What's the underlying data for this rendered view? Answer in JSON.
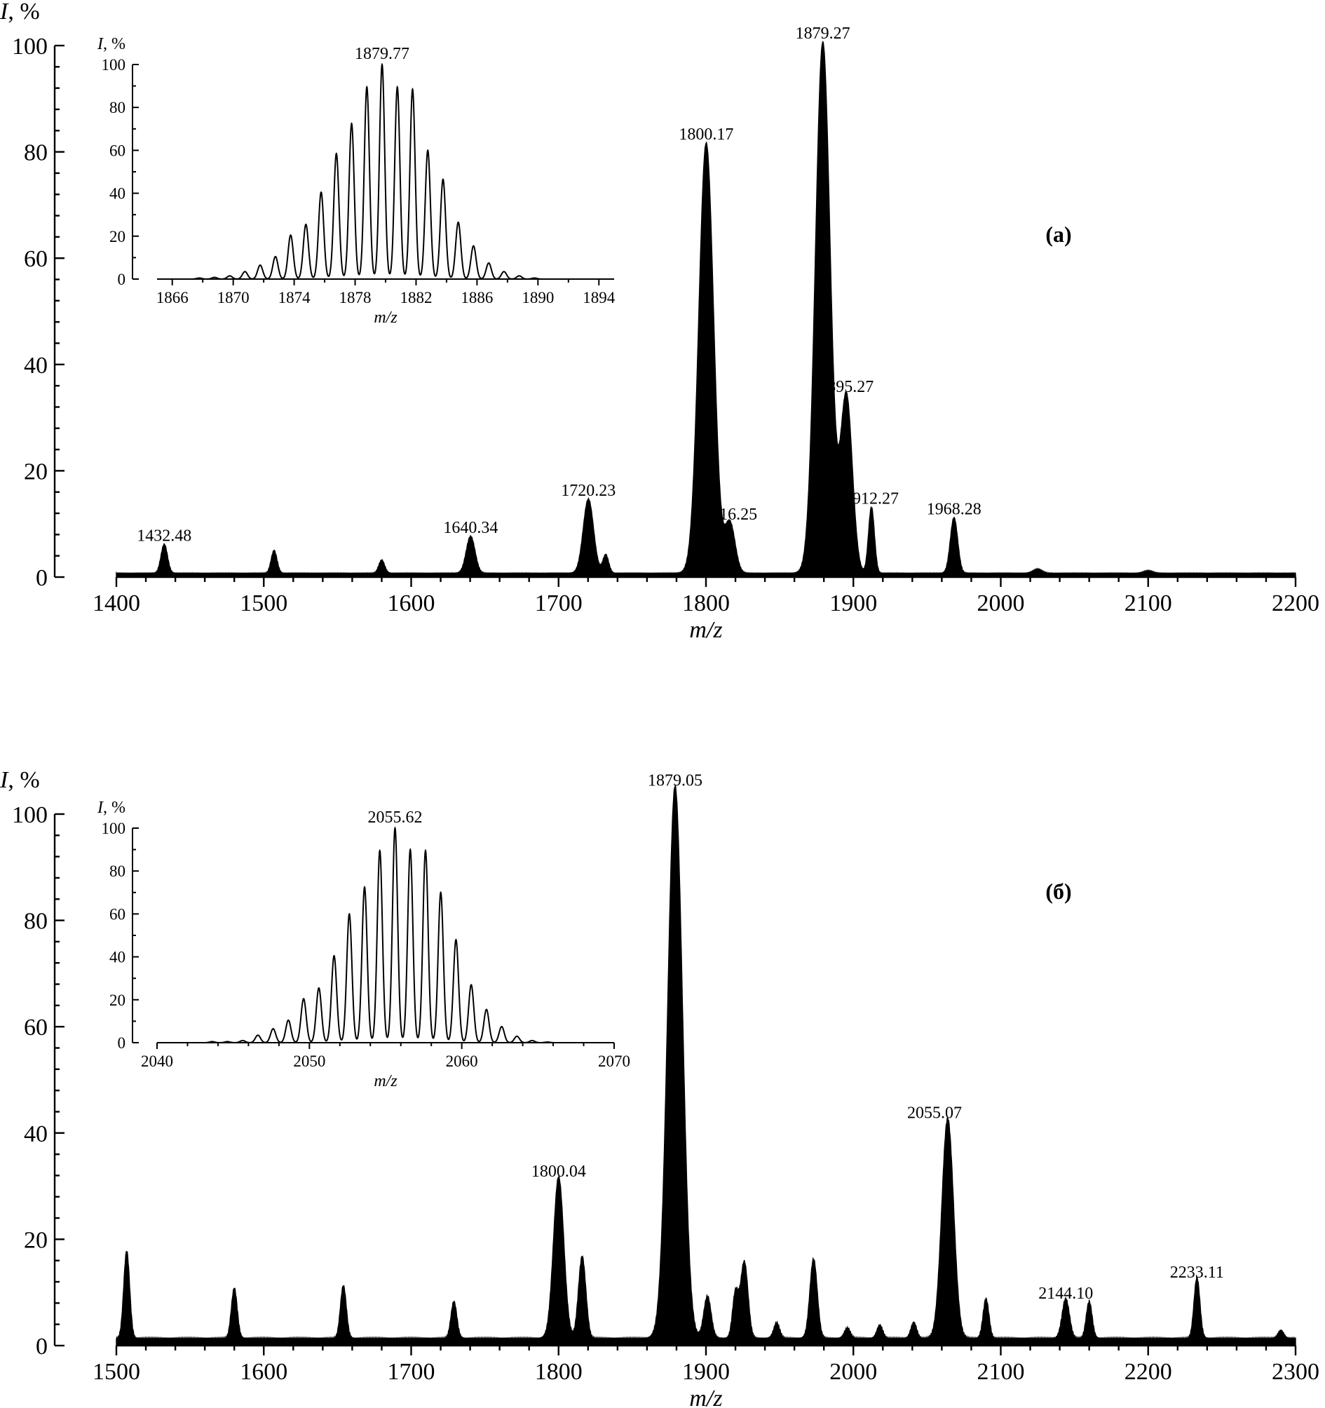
{
  "chart_data": [
    {
      "id": "a_main",
      "type": "line",
      "panel_label": "(a)",
      "ylabel_italic": "I",
      "ylabel_rest": ", %",
      "xlabel": "m/z",
      "xlim": [
        1400,
        2200
      ],
      "ylim": [
        0,
        100
      ],
      "xticks": [
        1400,
        1500,
        1600,
        1700,
        1800,
        1900,
        2000,
        2100,
        2200
      ],
      "yticks": [
        0,
        20,
        40,
        60,
        80,
        100
      ],
      "baseline": 0.8,
      "peaks": [
        {
          "x": 1432.48,
          "h": 5.5,
          "w": 2.2,
          "label": "1432.48"
        },
        {
          "x": 1507,
          "h": 4.3,
          "w": 2.0
        },
        {
          "x": 1580,
          "h": 2.5,
          "w": 2.0
        },
        {
          "x": 1640.34,
          "h": 7,
          "w": 3.0,
          "label": "1640.34"
        },
        {
          "x": 1720.23,
          "h": 14,
          "w": 3.5,
          "label": "1720.23"
        },
        {
          "x": 1732,
          "h": 3.5,
          "w": 2.0
        },
        {
          "x": 1800.17,
          "h": 81,
          "w": 5.0,
          "label": "1800.17"
        },
        {
          "x": 1816.25,
          "h": 9.5,
          "w": 3.5,
          "label": "1816.25"
        },
        {
          "x": 1879.27,
          "h": 100,
          "w": 5.0,
          "label": "1879.27"
        },
        {
          "x": 1895.27,
          "h": 33.5,
          "w": 4.0,
          "label": "1895.27"
        },
        {
          "x": 1912.27,
          "h": 12.5,
          "w": 2.0,
          "label": "1912.27"
        },
        {
          "x": 1968.28,
          "h": 10.5,
          "w": 2.5,
          "label": "1968.28"
        },
        {
          "x": 2025,
          "h": 0.8,
          "w": 3.0
        },
        {
          "x": 2100,
          "h": 0.5,
          "w": 3.0
        }
      ]
    },
    {
      "id": "a_inset",
      "type": "line",
      "ylabel_italic": "I",
      "ylabel_rest": ", %",
      "xlabel": "m/z",
      "xlim": [
        1865,
        1895
      ],
      "ylim": [
        0,
        100
      ],
      "xticks": [
        1866,
        1870,
        1874,
        1878,
        1882,
        1886,
        1890,
        1894
      ],
      "yticks": [
        0,
        20,
        40,
        60,
        80,
        100
      ],
      "top_label": "1879.77",
      "top_label_x": 1879.77,
      "isotope_start": 1867.77,
      "isotope_step": 1,
      "isotope_values": [
        0.5,
        0.8,
        1.5,
        3.5,
        6.5,
        10.5,
        20.5,
        25.5,
        40.5,
        58.5,
        72.5,
        89.5,
        100,
        89.5,
        88.5,
        60,
        46.5,
        26.5,
        15.5,
        7.5,
        3.5,
        1.5,
        0.5
      ]
    },
    {
      "id": "b_main",
      "type": "line",
      "panel_label": "(б)",
      "ylabel_italic": "I",
      "ylabel_rest": ", %",
      "xlabel": "m/z",
      "xlim": [
        1500,
        2300
      ],
      "ylim": [
        0,
        100
      ],
      "xticks": [
        1500,
        1600,
        1700,
        1800,
        1900,
        2000,
        2100,
        2200,
        2300
      ],
      "yticks": [
        0,
        20,
        40,
        60,
        80,
        100
      ],
      "baseline": 1.5,
      "peaks": [
        {
          "x": 1507,
          "h": 16.5,
          "w": 2.0
        },
        {
          "x": 1580,
          "h": 9.5,
          "w": 2.0
        },
        {
          "x": 1654,
          "h": 10,
          "w": 2.0
        },
        {
          "x": 1729,
          "h": 7,
          "w": 2.0
        },
        {
          "x": 1800.04,
          "h": 30.5,
          "w": 3.5,
          "label": "1800.04"
        },
        {
          "x": 1816,
          "h": 15.5,
          "w": 2.5
        },
        {
          "x": 1879.05,
          "h": 104,
          "w": 5.0,
          "label": "1879.05"
        },
        {
          "x": 1901,
          "h": 8,
          "w": 2.5
        },
        {
          "x": 1920,
          "h": 8.5,
          "w": 2.0
        },
        {
          "x": 1926,
          "h": 14.5,
          "w": 2.5
        },
        {
          "x": 1948,
          "h": 3,
          "w": 2.0
        },
        {
          "x": 1973,
          "h": 15,
          "w": 2.5
        },
        {
          "x": 1996,
          "h": 2,
          "w": 2.0
        },
        {
          "x": 2018,
          "h": 2.5,
          "w": 2.0
        },
        {
          "x": 2041,
          "h": 3,
          "w": 2.0
        },
        {
          "x": 2055.07,
          "h": 41.5,
          "w": 4.0,
          "label": "2055.07",
          "label_x": 2055.07,
          "peak_x": 2064
        },
        {
          "x": 2090,
          "h": 7.5,
          "w": 2.0
        },
        {
          "x": 2144.1,
          "h": 7.5,
          "w": 2.5,
          "label": "2144.10"
        },
        {
          "x": 2160,
          "h": 7,
          "w": 2.0
        },
        {
          "x": 2233.11,
          "h": 11.5,
          "w": 2.0,
          "label": "2233.11"
        },
        {
          "x": 2290,
          "h": 1.5,
          "w": 2.0
        }
      ]
    },
    {
      "id": "b_inset",
      "type": "line",
      "ylabel_italic": "I",
      "ylabel_rest": ", %",
      "xlabel": "m/z",
      "xlim": [
        2040,
        2070
      ],
      "ylim": [
        0,
        100
      ],
      "xticks": [
        2040,
        2050,
        2060,
        2070
      ],
      "yticks": [
        0,
        20,
        40,
        60,
        80,
        100
      ],
      "top_label": "2055.62",
      "top_label_x": 2055.62,
      "isotope_start": 2043.62,
      "isotope_step": 1,
      "isotope_values": [
        0.5,
        0.5,
        1,
        3.5,
        6.5,
        10.5,
        20.5,
        25.5,
        40.5,
        60,
        72.5,
        89.5,
        100,
        90,
        89.5,
        70,
        48,
        27,
        15.5,
        7.5,
        3,
        1,
        0.3
      ]
    }
  ]
}
